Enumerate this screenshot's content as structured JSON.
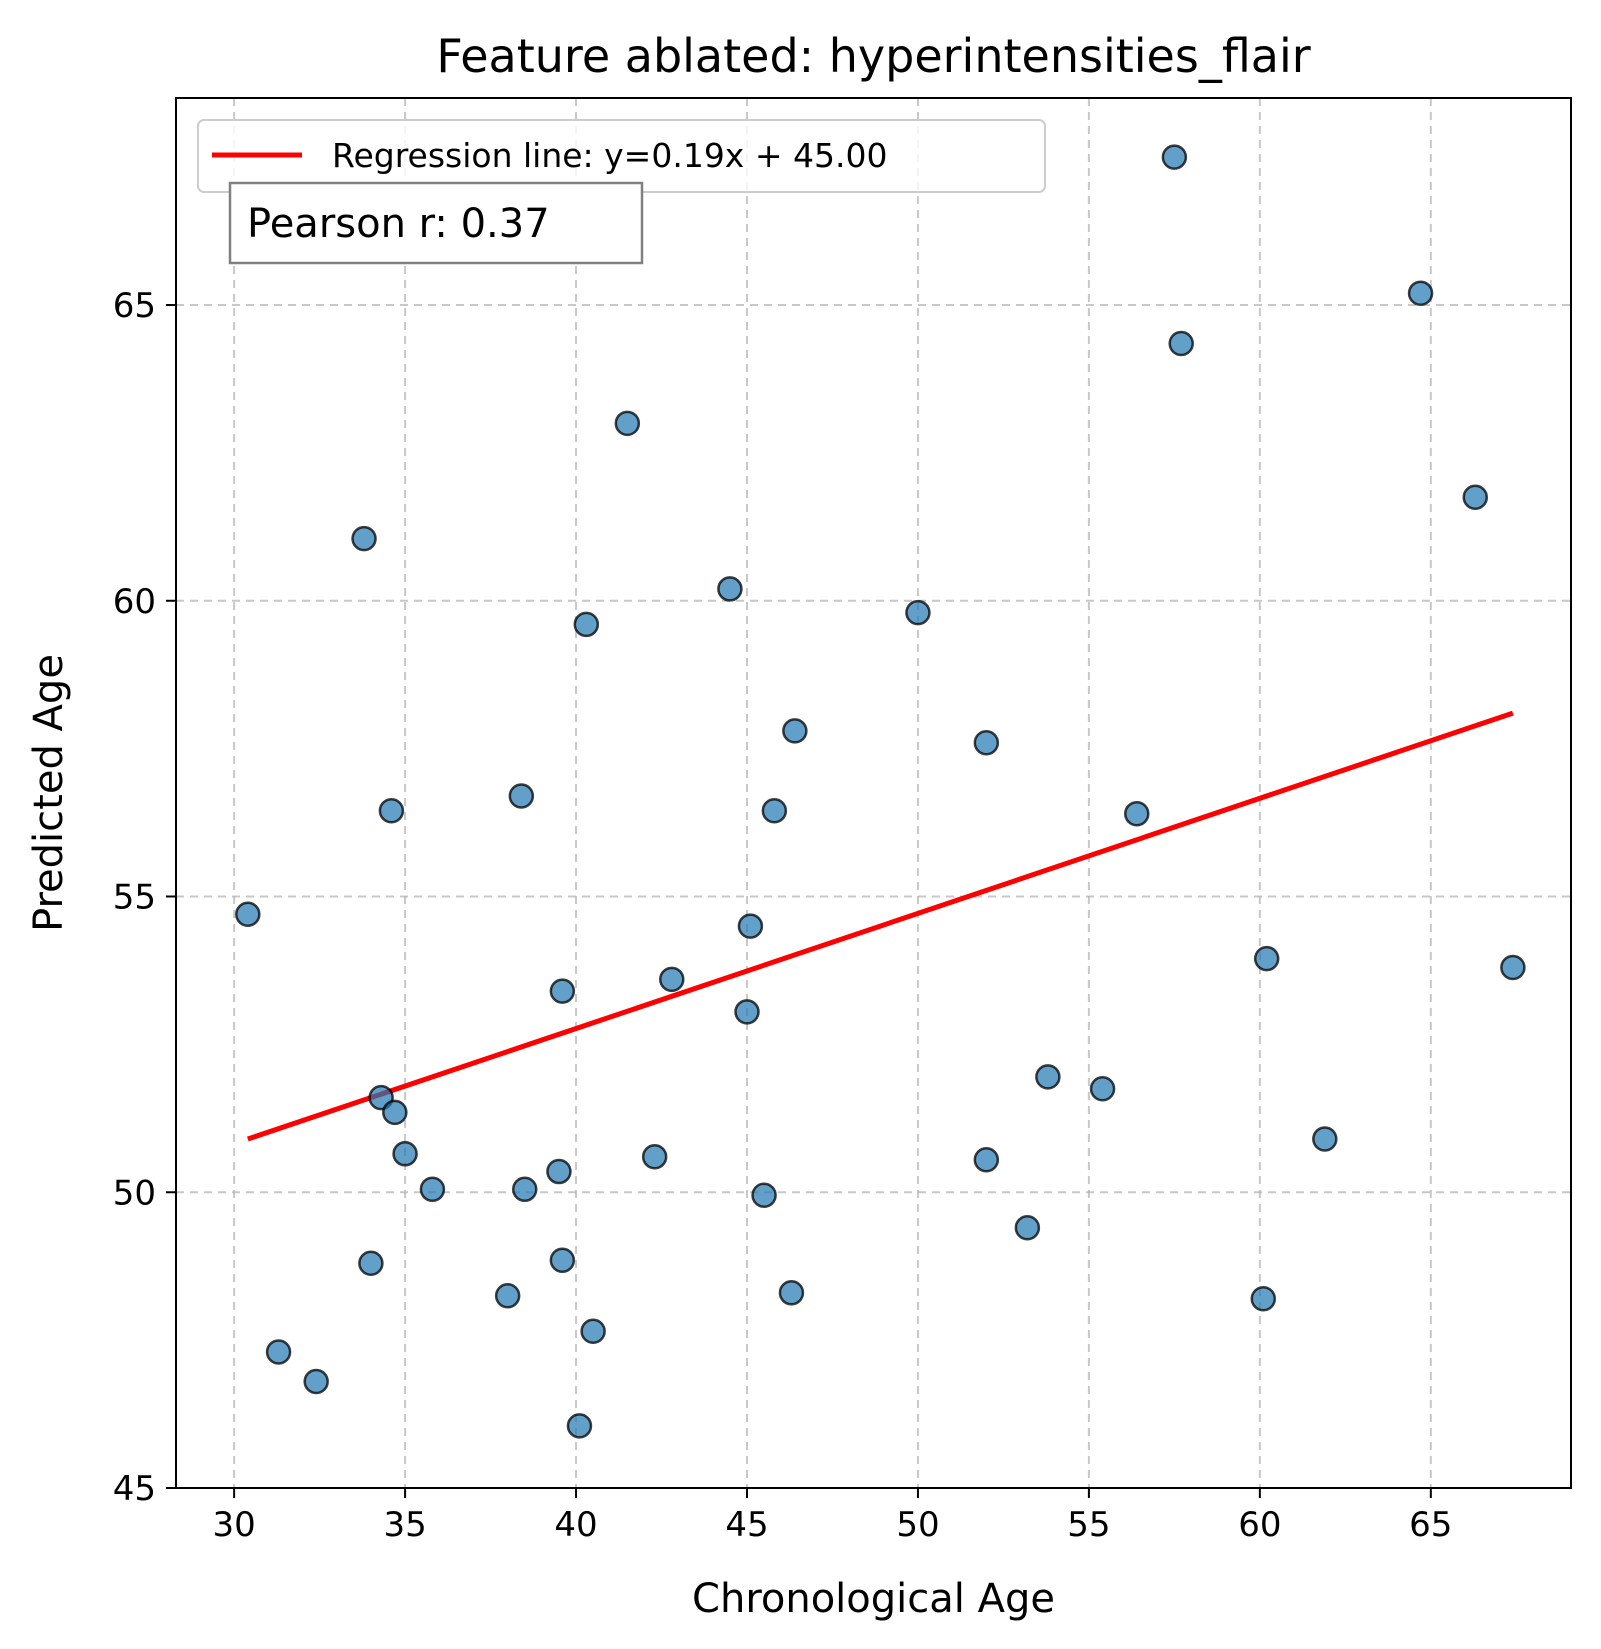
{
  "chart_data": {
    "type": "scatter",
    "title": "Feature ablated: hyperintensities_flair",
    "xlabel": "Chronological Age",
    "ylabel": "Predicted Age",
    "xlim": [
      28.3,
      69.1
    ],
    "ylim": [
      45,
      68.5
    ],
    "xticks": [
      30,
      35,
      40,
      45,
      50,
      55,
      60,
      65
    ],
    "yticks": [
      45,
      50,
      55,
      60,
      65
    ],
    "grid": true,
    "legend": {
      "position": "top-left",
      "entries": [
        "Regression line: y=0.19x + 45.00"
      ]
    },
    "annotation": "Pearson r: 0.37",
    "colors": {
      "points": "#1f77b4",
      "point_edge": "#000000",
      "line": "#ff0000"
    },
    "regression": {
      "slope": 0.19,
      "intercept": 45.0,
      "x_range": [
        30.4,
        67.4
      ],
      "y_range": [
        50.9,
        58.1
      ]
    },
    "points": [
      {
        "x": 30.4,
        "y": 54.7
      },
      {
        "x": 31.3,
        "y": 47.3
      },
      {
        "x": 32.4,
        "y": 46.8
      },
      {
        "x": 33.8,
        "y": 61.05
      },
      {
        "x": 34.0,
        "y": 48.8
      },
      {
        "x": 34.3,
        "y": 51.6
      },
      {
        "x": 34.6,
        "y": 56.45
      },
      {
        "x": 34.7,
        "y": 51.35
      },
      {
        "x": 35.0,
        "y": 50.65
      },
      {
        "x": 35.8,
        "y": 50.05
      },
      {
        "x": 38.0,
        "y": 48.25
      },
      {
        "x": 38.4,
        "y": 56.7
      },
      {
        "x": 38.5,
        "y": 50.05
      },
      {
        "x": 39.5,
        "y": 50.35
      },
      {
        "x": 39.6,
        "y": 53.4
      },
      {
        "x": 39.6,
        "y": 48.85
      },
      {
        "x": 40.1,
        "y": 46.05
      },
      {
        "x": 40.3,
        "y": 59.6
      },
      {
        "x": 40.5,
        "y": 47.65
      },
      {
        "x": 41.5,
        "y": 63.0
      },
      {
        "x": 42.3,
        "y": 50.6
      },
      {
        "x": 42.8,
        "y": 53.6
      },
      {
        "x": 44.5,
        "y": 60.2
      },
      {
        "x": 45.0,
        "y": 53.05
      },
      {
        "x": 45.1,
        "y": 54.5
      },
      {
        "x": 45.5,
        "y": 49.95
      },
      {
        "x": 45.8,
        "y": 56.45
      },
      {
        "x": 46.3,
        "y": 48.3
      },
      {
        "x": 46.4,
        "y": 57.8
      },
      {
        "x": 50.0,
        "y": 59.8
      },
      {
        "x": 52.0,
        "y": 57.6
      },
      {
        "x": 52.0,
        "y": 50.55
      },
      {
        "x": 53.2,
        "y": 49.4
      },
      {
        "x": 53.8,
        "y": 51.95
      },
      {
        "x": 55.4,
        "y": 51.75
      },
      {
        "x": 56.4,
        "y": 56.4
      },
      {
        "x": 57.5,
        "y": 67.5
      },
      {
        "x": 57.7,
        "y": 64.35
      },
      {
        "x": 60.1,
        "y": 48.2
      },
      {
        "x": 60.2,
        "y": 53.95
      },
      {
        "x": 61.9,
        "y": 50.9
      },
      {
        "x": 64.7,
        "y": 65.2
      },
      {
        "x": 66.3,
        "y": 61.75
      },
      {
        "x": 67.4,
        "y": 53.8
      }
    ]
  }
}
